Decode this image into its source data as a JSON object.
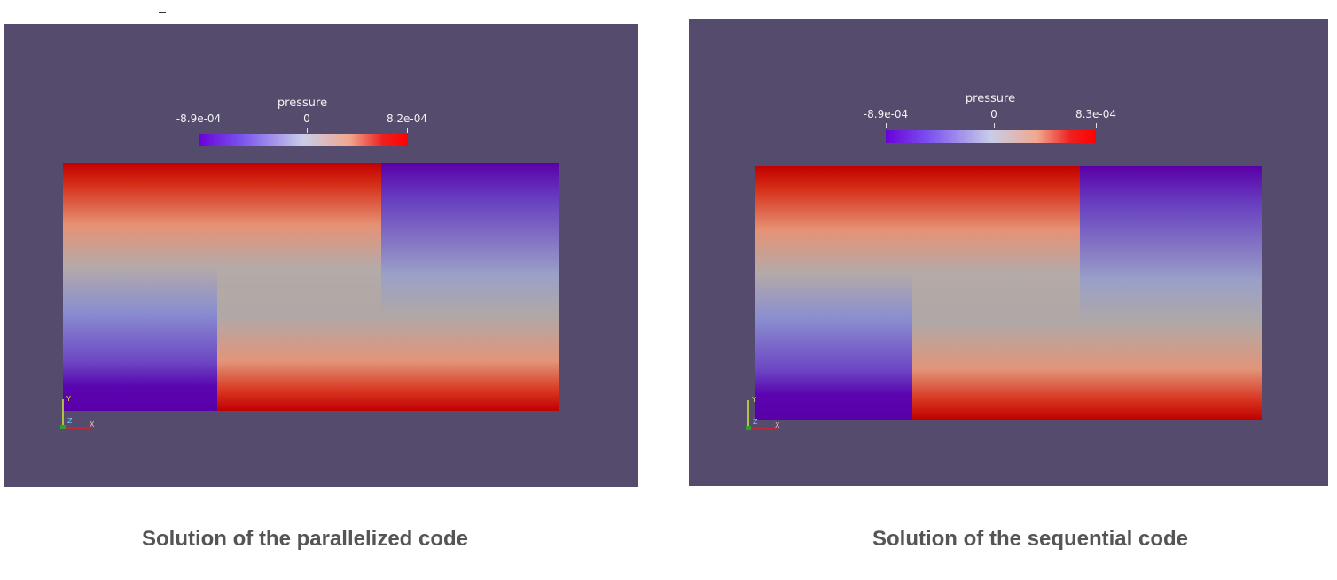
{
  "panels": [
    {
      "colorbar": {
        "title": "pressure",
        "min_label": "-8.9e-04",
        "mid_label": "0",
        "max_label": "8.2e-04"
      },
      "axes": {
        "y": "Y",
        "z": "Z",
        "x": "X"
      },
      "caption": "Solution of the parallelized code"
    },
    {
      "colorbar": {
        "title": "pressure",
        "min_label": "-8.9e-04",
        "mid_label": "0",
        "max_label": "8.3e-04"
      },
      "axes": {
        "y": "Y",
        "z": "Z",
        "x": "X"
      },
      "caption": "Solution of the sequential code"
    }
  ],
  "colors": {
    "background": "#554b6c",
    "colormap": [
      "#5a00b4",
      "#7a50ef",
      "#c8c8e6",
      "#f0b49c",
      "#e8170f",
      "#c00000"
    ],
    "caption": "#555555"
  }
}
